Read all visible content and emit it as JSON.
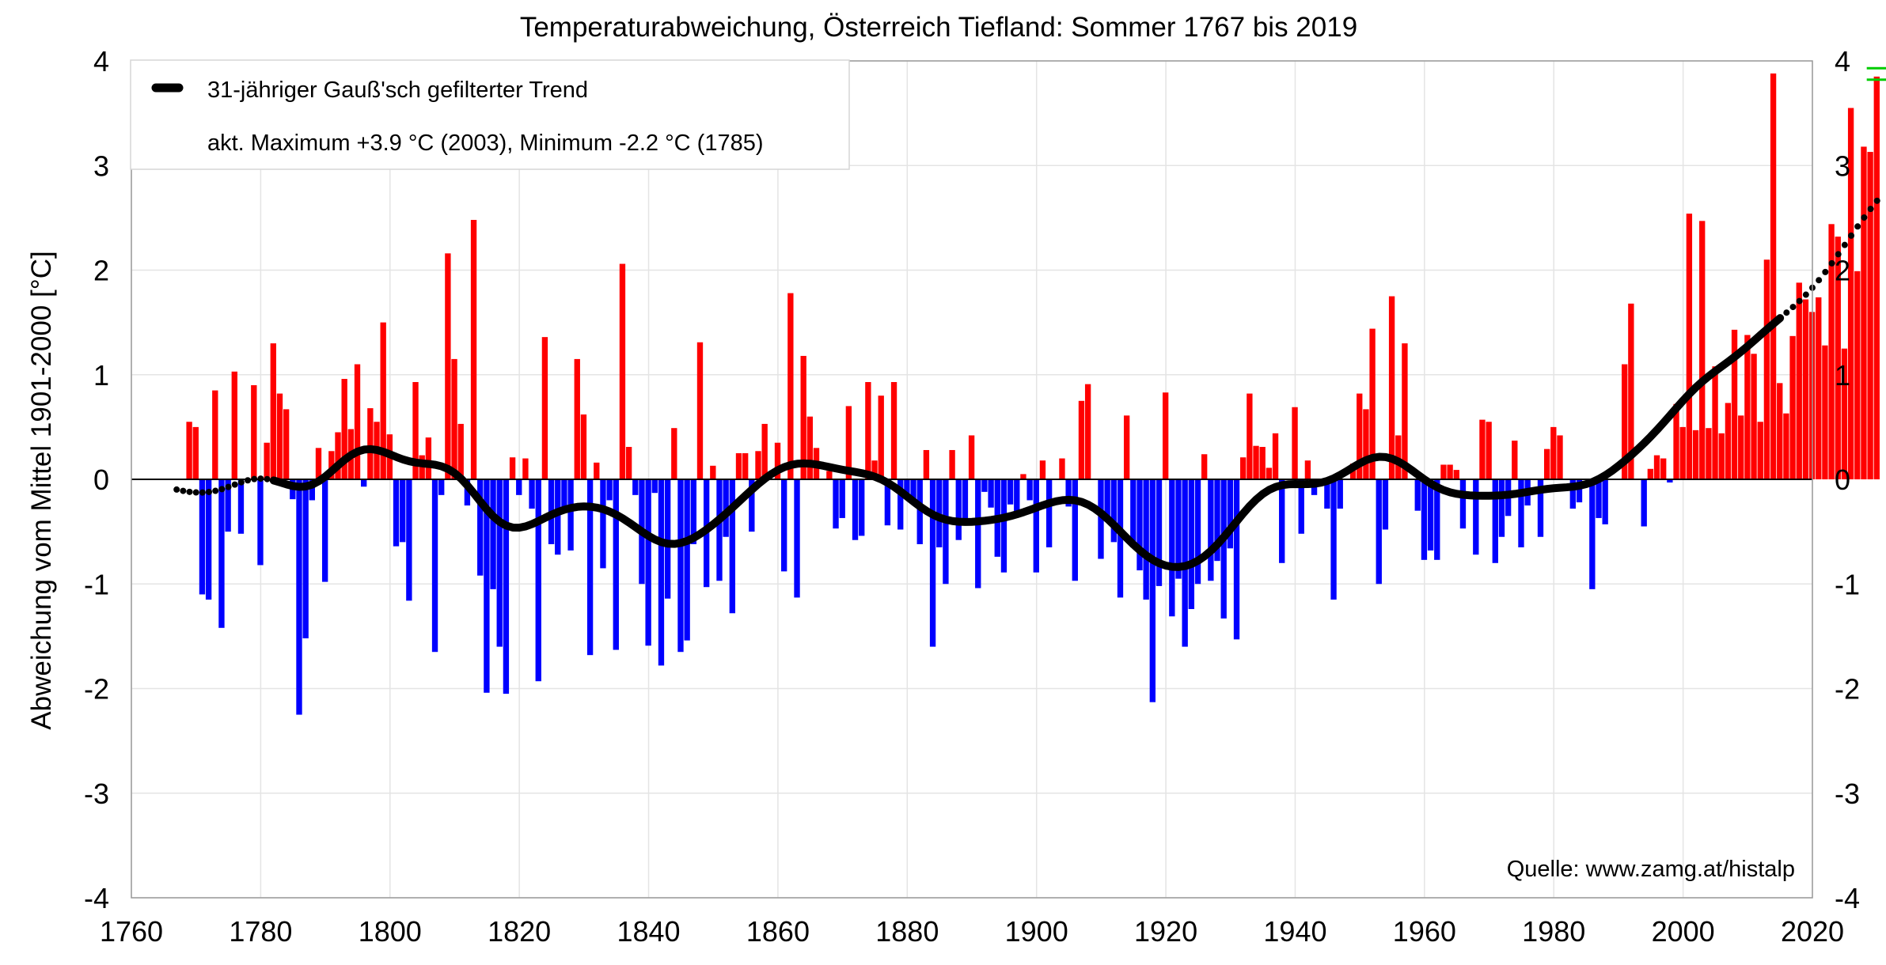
{
  "chart_data": {
    "type": "bar",
    "title": "Temperaturabweichung, Österreich Tiefland: Sommer 1767 bis 2019",
    "ylabel": "Abweichung vom Mittel 1901-2000 [°C]",
    "xlabel": "",
    "xlim": [
      1760,
      2020
    ],
    "ylim": [
      -4,
      4
    ],
    "x_ticks": [
      "1760",
      "1780",
      "1800",
      "1820",
      "1840",
      "1860",
      "1880",
      "1900",
      "1920",
      "1940",
      "1960",
      "1980",
      "2000",
      "2020"
    ],
    "y_ticks": [
      "4",
      "3",
      "2",
      "1",
      "0",
      "-1",
      "-2",
      "-3",
      "-4"
    ],
    "grid": true,
    "legend_position": "top-left",
    "legend": {
      "trend_label": "31-jähriger Gauß'sch gefilterter Trend",
      "extremes_text": "akt. Maximum +3.9 °C (2003), Minimum -2.2 °C (1785)"
    },
    "source_text": "Quelle: www.zamg.at/histalp",
    "colors": {
      "positive": "#ff0000",
      "negative": "#0000ff",
      "trend": "#000000",
      "marker": "#00cc00"
    },
    "series": [
      {
        "name": "Abweichung",
        "start_year": 1767,
        "values": [
          0.0,
          0.0,
          0.55,
          0.5,
          -1.1,
          -1.15,
          0.85,
          -1.42,
          -0.5,
          1.03,
          -0.52,
          0.0,
          0.9,
          -0.82,
          0.35,
          1.3,
          0.82,
          0.67,
          -0.19,
          -2.25,
          -1.52,
          -0.2,
          0.3,
          -0.98,
          0.27,
          0.45,
          0.96,
          0.48,
          1.1,
          -0.07,
          0.68,
          0.55,
          1.5,
          0.43,
          -0.64,
          -0.6,
          -1.16,
          0.93,
          0.23,
          0.4,
          -1.65,
          -0.15,
          2.16,
          1.15,
          0.53,
          -0.25,
          2.48,
          -0.92,
          -2.04,
          -1.05,
          -1.6,
          -2.05,
          0.21,
          -0.15,
          0.2,
          -0.28,
          -1.93,
          1.36,
          -0.62,
          -0.72,
          -0.29,
          -0.68,
          1.15,
          0.62,
          -1.68,
          0.16,
          -0.85,
          -0.2,
          -1.63,
          2.06,
          0.31,
          -0.15,
          -1.0,
          -1.59,
          -0.13,
          -1.78,
          -1.14,
          0.49,
          -1.65,
          -1.54,
          -0.62,
          1.31,
          -1.03,
          0.13,
          -0.97,
          -0.55,
          -1.28,
          0.25,
          0.25,
          -0.5,
          0.27,
          0.53,
          0.0,
          0.35,
          -0.88,
          1.78,
          -1.13,
          1.18,
          0.6,
          0.3,
          0.0,
          0.08,
          -0.47,
          -0.37,
          0.7,
          -0.58,
          -0.54,
          0.93,
          0.18,
          0.8,
          -0.44,
          0.93,
          -0.48,
          -0.15,
          -0.2,
          -0.62,
          0.28,
          -1.6,
          -0.65,
          -1.0,
          0.28,
          -0.58,
          -0.38,
          0.42,
          -1.04,
          -0.12,
          -0.27,
          -0.74,
          -0.89,
          -0.24,
          -0.35,
          0.05,
          -0.2,
          -0.89,
          0.18,
          -0.65,
          0.0,
          0.2,
          -0.26,
          -0.97,
          0.75,
          0.91,
          0.0,
          -0.76,
          -0.38,
          -0.6,
          -1.13,
          0.61,
          -0.65,
          -0.87,
          -1.15,
          -2.13,
          -1.02,
          0.83,
          -1.31,
          -0.95,
          -1.6,
          -1.24,
          -1.0,
          0.24,
          -0.97,
          -0.78,
          -1.33,
          -0.66,
          -1.53,
          0.21,
          0.82,
          0.32,
          0.31,
          0.11,
          0.44,
          -0.8,
          0.0,
          0.69,
          -0.52,
          0.18,
          -0.15,
          0.0,
          -0.28,
          -1.15,
          -0.28,
          0.0,
          0.15,
          0.82,
          0.67,
          1.44,
          -1.0,
          -0.48,
          1.75,
          0.42,
          1.3,
          0.0,
          -0.3,
          -0.77,
          -0.68,
          -0.77,
          0.14,
          0.14,
          0.09,
          -0.47,
          0.0,
          -0.72,
          0.57,
          0.55,
          -0.8,
          -0.55,
          -0.35,
          0.37,
          -0.65,
          -0.25,
          0.0,
          -0.55,
          0.29,
          0.5,
          0.42,
          0.0,
          -0.28,
          -0.22,
          0.0,
          -1.05,
          -0.37,
          -0.43,
          0.0,
          0.0,
          1.1,
          1.68,
          0.0,
          -0.45,
          0.1,
          0.23,
          0.2,
          -0.03,
          0.72,
          0.5,
          2.54,
          0.47,
          2.47,
          0.49,
          1.08,
          0.44,
          0.73,
          1.43,
          0.61,
          1.38,
          1.2,
          0.55,
          2.1,
          3.88,
          0.92,
          0.63,
          1.37,
          1.88,
          1.72,
          1.6,
          1.74,
          1.28,
          2.44,
          2.32,
          1.25,
          3.55,
          1.99,
          3.18,
          3.13,
          3.85
        ]
      }
    ]
  }
}
